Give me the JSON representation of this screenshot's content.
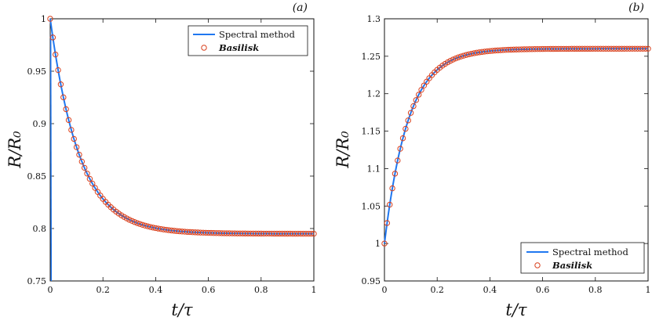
{
  "colors": {
    "line": "#1f77f0",
    "marker": "#d9411e",
    "axis": "#111111"
  },
  "chart_data": [
    {
      "type": "line",
      "panel_label": "(a)",
      "xlabel": "t/τ",
      "ylabel": "R/R₀",
      "xlim": [
        0,
        1
      ],
      "ylim": [
        0.75,
        1
      ],
      "xticks": [
        0,
        0.2,
        0.4,
        0.6,
        0.8,
        1
      ],
      "xtick_labels": [
        "0",
        "0.2",
        "0.4",
        "0.6",
        "0.8",
        "1"
      ],
      "yticks": [
        0.75,
        0.8,
        0.85,
        0.9,
        0.95,
        1
      ],
      "ytick_labels": [
        "0.75",
        "0.8",
        "0.85",
        "0.9",
        "0.95",
        "1"
      ],
      "legend_position": "top-right",
      "series": [
        {
          "name": "Spectral method",
          "style": "line",
          "start": 1.0,
          "end": 0.795,
          "time_constant": 0.11
        },
        {
          "name": "Basilisk",
          "style": "markers",
          "start": 1.0,
          "end": 0.795,
          "time_constant": 0.11,
          "n_points": 101
        }
      ]
    },
    {
      "type": "line",
      "panel_label": "(b)",
      "xlabel": "t/τ",
      "ylabel": "R/R₀",
      "xlim": [
        0,
        1
      ],
      "ylim": [
        0.95,
        1.3
      ],
      "xticks": [
        0,
        0.2,
        0.4,
        0.6,
        0.8,
        1
      ],
      "xtick_labels": [
        "0",
        "0.2",
        "0.4",
        "0.6",
        "0.8",
        "1"
      ],
      "yticks": [
        0.95,
        1,
        1.05,
        1.1,
        1.15,
        1.2,
        1.25,
        1.3
      ],
      "ytick_labels": [
        "0.95",
        "1",
        "1.05",
        "1.1",
        "1.15",
        "1.2",
        "1.25",
        "1.3"
      ],
      "legend_position": "bottom-right",
      "series": [
        {
          "name": "Spectral method",
          "style": "line",
          "start": 1.0,
          "end": 1.26,
          "time_constant": 0.09
        },
        {
          "name": "Basilisk",
          "style": "markers",
          "start": 1.0,
          "end": 1.26,
          "time_constant": 0.09,
          "n_points": 101
        }
      ]
    }
  ]
}
